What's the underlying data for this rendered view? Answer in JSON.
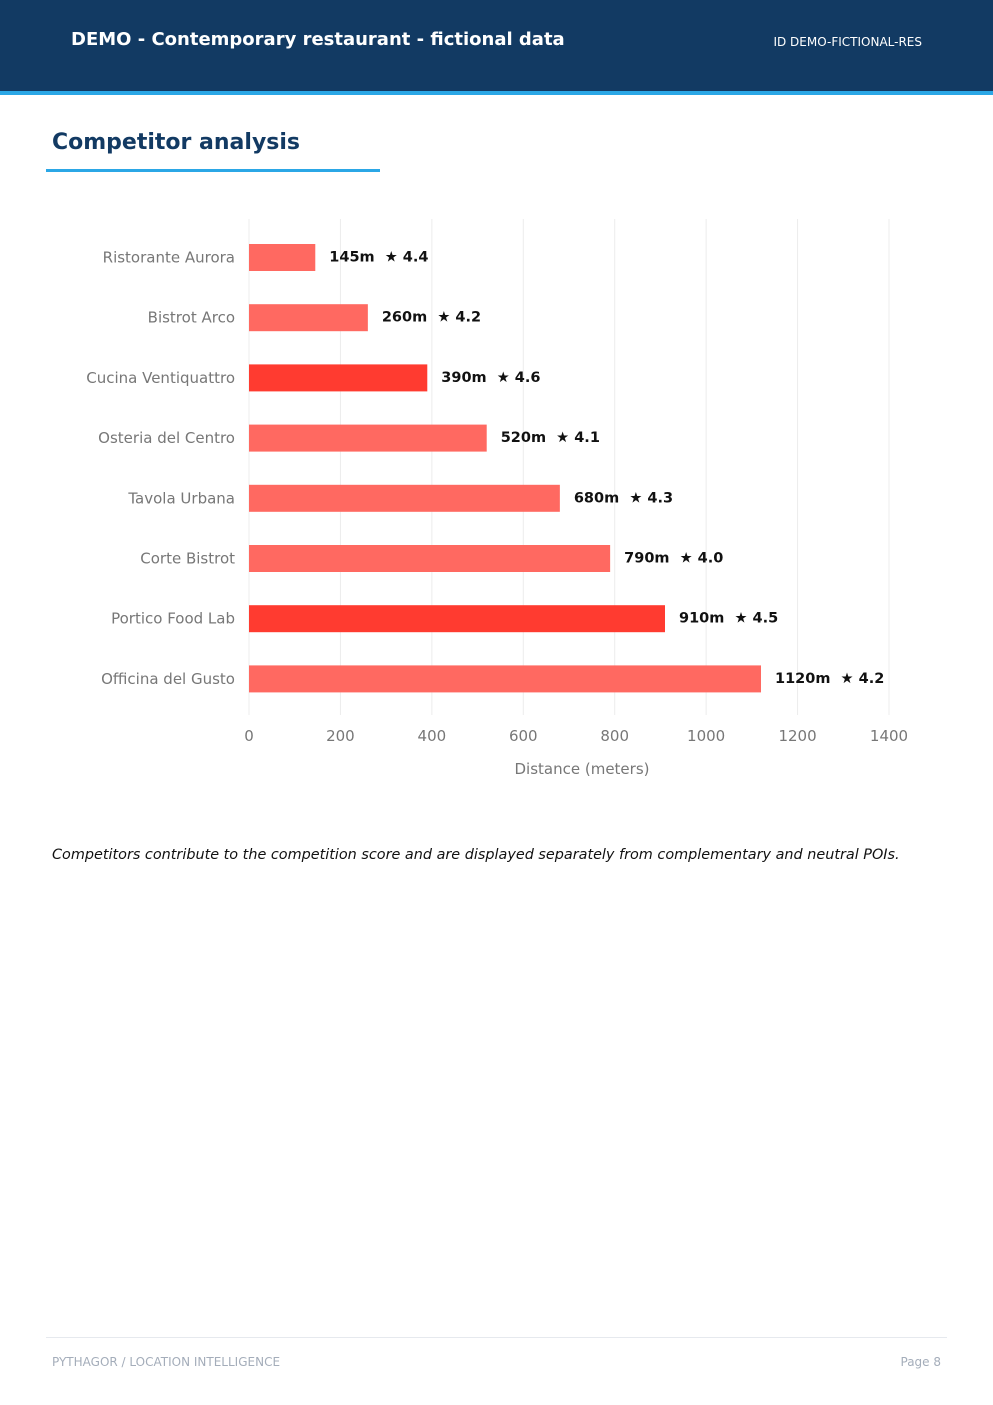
{
  "header": {
    "title": "DEMO - Contemporary restaurant - fictional data",
    "id_label": "ID DEMO-FICTIONAL-RES",
    "background_color": "#123a63",
    "accent_color": "#2ba7e6"
  },
  "section": {
    "title": "Competitor analysis"
  },
  "chart_data": {
    "type": "bar",
    "orientation": "horizontal",
    "categories": [
      "Ristorante Aurora",
      "Bistrot Arco",
      "Cucina Ventiquattro",
      "Osteria del Centro",
      "Tavola Urbana",
      "Corte Bistrot",
      "Portico Food Lab",
      "Officina del Gusto"
    ],
    "values": [
      145,
      260,
      390,
      520,
      680,
      790,
      910,
      1120
    ],
    "ratings": [
      "4.4",
      "4.2",
      "4.6",
      "4.1",
      "4.3",
      "4.0",
      "4.5",
      "4.2"
    ],
    "data_labels": [
      "145m  ★ 4.4",
      "260m  ★ 4.2",
      "390m  ★ 4.6",
      "520m  ★ 4.1",
      "680m  ★ 4.3",
      "790m  ★ 4.0",
      "910m  ★ 4.5",
      "1120m  ★ 4.2"
    ],
    "highlighted": [
      false,
      false,
      true,
      false,
      false,
      false,
      true,
      false
    ],
    "xlabel": "Distance (meters)",
    "ylabel": "",
    "xlim": [
      0,
      1400
    ],
    "xticks": [
      0,
      200,
      400,
      600,
      800,
      1000,
      1200,
      1400
    ],
    "grid": "vertical",
    "colors": {
      "bar": "#ff6961",
      "bar_highlight": "#ff3b30",
      "grid": "#ececec"
    }
  },
  "caption": "Competitors contribute to the competition score and are displayed separately from complementary and neutral POIs.",
  "footer": {
    "left": "PYTHAGOR  /  LOCATION INTELLIGENCE",
    "right": "Page 8"
  }
}
